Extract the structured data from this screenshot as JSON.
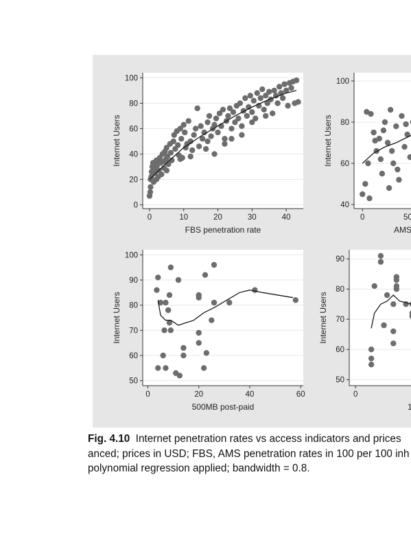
{
  "caption": {
    "label": "Fig. 4.10",
    "line1": "Internet penetration rates vs access indicators and prices",
    "line2": "anced; prices in USD; FBS, AMS penetration rates in 100 per 100 inh",
    "line3": "polynomial regression applied; bandwidth = 0.8."
  },
  "colors": {
    "figure_background": "#e6e6e6",
    "plot_background": "#ffffff",
    "gridline": "#e8e8e8",
    "marker": "#6d6d6d",
    "fit_line": "#1a1a1a"
  },
  "chart_data": [
    {
      "type": "scatter",
      "title": "",
      "xlabel": "FBS penetration rate",
      "ylabel": "Internet Users",
      "xlim": [
        -2,
        45
      ],
      "ylim": [
        -3,
        104
      ],
      "xticks": [
        0,
        10,
        20,
        30,
        40
      ],
      "yticks": [
        0,
        20,
        40,
        60,
        80,
        100
      ],
      "grid": true,
      "points": [
        [
          0,
          7
        ],
        [
          0.2,
          10
        ],
        [
          0.3,
          14
        ],
        [
          0.3,
          20
        ],
        [
          0.5,
          22
        ],
        [
          0.6,
          26
        ],
        [
          0.8,
          30
        ],
        [
          1,
          33
        ],
        [
          1.2,
          18
        ],
        [
          1.5,
          25
        ],
        [
          1.8,
          29
        ],
        [
          2,
          35
        ],
        [
          2.2,
          31
        ],
        [
          2.5,
          22
        ],
        [
          2.7,
          27
        ],
        [
          3,
          37
        ],
        [
          3.2,
          33
        ],
        [
          3.5,
          24
        ],
        [
          3.8,
          40
        ],
        [
          4,
          34
        ],
        [
          4.2,
          29
        ],
        [
          4.5,
          42
        ],
        [
          4.8,
          36
        ],
        [
          5,
          45
        ],
        [
          5.2,
          38
        ],
        [
          5.5,
          32
        ],
        [
          6,
          48
        ],
        [
          6.2,
          41
        ],
        [
          6.5,
          35
        ],
        [
          7,
          50
        ],
        [
          7.2,
          55
        ],
        [
          7.5,
          44
        ],
        [
          8,
          58
        ],
        [
          8.3,
          47
        ],
        [
          8.6,
          39
        ],
        [
          9,
          60
        ],
        [
          9.3,
          52
        ],
        [
          9.6,
          37
        ],
        [
          10,
          63
        ],
        [
          10.3,
          57
        ],
        [
          10.6,
          45
        ],
        [
          11,
          48
        ],
        [
          11.4,
          66
        ],
        [
          12,
          50
        ],
        [
          12.5,
          43
        ],
        [
          13,
          55
        ],
        [
          13.5,
          60
        ],
        [
          14,
          76
        ],
        [
          14.5,
          46
        ],
        [
          15,
          62
        ],
        [
          15.5,
          52
        ],
        [
          16,
          57
        ],
        [
          16.5,
          44
        ],
        [
          17,
          65
        ],
        [
          17.5,
          70
        ],
        [
          18,
          54
        ],
        [
          18.5,
          60
        ],
        [
          19,
          63
        ],
        [
          19.5,
          68
        ],
        [
          20,
          57
        ],
        [
          20.5,
          72
        ],
        [
          21,
          62
        ],
        [
          21.5,
          75
        ],
        [
          22,
          52
        ],
        [
          22.5,
          66
        ],
        [
          23,
          70
        ],
        [
          23.5,
          76
        ],
        [
          24,
          60
        ],
        [
          24.5,
          73
        ],
        [
          25,
          65
        ],
        [
          25.5,
          78
        ],
        [
          26,
          68
        ],
        [
          26.5,
          80
        ],
        [
          27,
          62
        ],
        [
          27.5,
          74
        ],
        [
          28,
          84
        ],
        [
          28.5,
          70
        ],
        [
          29,
          77
        ],
        [
          29.5,
          86
        ],
        [
          30,
          73
        ],
        [
          30.5,
          82
        ],
        [
          31,
          68
        ],
        [
          31.5,
          88
        ],
        [
          32,
          78
        ],
        [
          32.5,
          84
        ],
        [
          33,
          91
        ],
        [
          33.5,
          75
        ],
        [
          34,
          86
        ],
        [
          34.5,
          80
        ],
        [
          35,
          89
        ],
        [
          35.5,
          83
        ],
        [
          36,
          72
        ],
        [
          36.5,
          90
        ],
        [
          37,
          86
        ],
        [
          37.5,
          80
        ],
        [
          38,
          93
        ],
        [
          38.5,
          88
        ],
        [
          39,
          84
        ],
        [
          39.5,
          95
        ],
        [
          40,
          90
        ],
        [
          40.5,
          78
        ],
        [
          41,
          96
        ],
        [
          41.5,
          92
        ],
        [
          42,
          97
        ],
        [
          42.5,
          80
        ],
        [
          43,
          98
        ],
        [
          43.5,
          81
        ],
        [
          19,
          40
        ],
        [
          12,
          38
        ],
        [
          2,
          20
        ],
        [
          5,
          27
        ],
        [
          9,
          36
        ],
        [
          22,
          48
        ],
        [
          27,
          55
        ],
        [
          30,
          65
        ],
        [
          34,
          70
        ],
        [
          17,
          50
        ],
        [
          24,
          52
        ]
      ],
      "fit": [
        [
          0,
          20
        ],
        [
          5,
          33
        ],
        [
          10,
          45
        ],
        [
          15,
          54
        ],
        [
          20,
          62
        ],
        [
          25,
          70
        ],
        [
          30,
          77
        ],
        [
          35,
          83
        ],
        [
          40,
          88
        ],
        [
          43,
          90
        ]
      ]
    },
    {
      "type": "scatter",
      "title": "",
      "xlabel": "AMS",
      "ylabel": "Internet Users",
      "xlim": [
        -3,
        20
      ],
      "ylim": [
        38,
        104
      ],
      "xticks": [
        0
      ],
      "xtick_labels_partial": [
        "50"
      ],
      "yticks": [
        40,
        60,
        80,
        100
      ],
      "grid": true,
      "points": [
        [
          0,
          45
        ],
        [
          1,
          50
        ],
        [
          2,
          60
        ],
        [
          1.5,
          85
        ],
        [
          3,
          84
        ],
        [
          4,
          75
        ],
        [
          5,
          66
        ],
        [
          6,
          72
        ],
        [
          7,
          55
        ],
        [
          8,
          80
        ],
        [
          9,
          70
        ],
        [
          10,
          86
        ],
        [
          11,
          60
        ],
        [
          12,
          78
        ],
        [
          13,
          52
        ],
        [
          14,
          83
        ],
        [
          15,
          68
        ],
        [
          16,
          74
        ],
        [
          17,
          63
        ],
        [
          18,
          80
        ],
        [
          2.5,
          43
        ],
        [
          6.5,
          62
        ],
        [
          9.5,
          48
        ],
        [
          12.5,
          57
        ],
        [
          15.5,
          79
        ],
        [
          4.5,
          71
        ],
        [
          7.5,
          76
        ],
        [
          10.5,
          66
        ]
      ],
      "fit": [
        [
          0,
          60
        ],
        [
          4,
          65
        ],
        [
          8,
          68
        ],
        [
          12,
          70
        ],
        [
          18,
          74
        ]
      ]
    },
    {
      "type": "scatter",
      "title": "",
      "xlabel": "500MB post-paid",
      "ylabel": "Internet Users",
      "xlim": [
        -2,
        61
      ],
      "ylim": [
        48,
        102
      ],
      "xticks": [
        0,
        20,
        40,
        60
      ],
      "yticks": [
        50,
        60,
        70,
        80,
        90,
        100
      ],
      "grid": true,
      "points": [
        [
          4,
          91
        ],
        [
          3.5,
          86
        ],
        [
          4,
          55
        ],
        [
          5,
          81
        ],
        [
          6,
          60
        ],
        [
          6.5,
          70
        ],
        [
          7,
          81
        ],
        [
          7,
          55
        ],
        [
          8,
          78
        ],
        [
          8.5,
          84
        ],
        [
          9,
          95
        ],
        [
          8.5,
          73
        ],
        [
          9,
          70
        ],
        [
          11,
          53
        ],
        [
          12,
          90
        ],
        [
          12.5,
          52
        ],
        [
          14,
          63
        ],
        [
          14,
          60
        ],
        [
          20,
          84
        ],
        [
          20,
          83
        ],
        [
          20,
          69
        ],
        [
          20,
          65
        ],
        [
          22,
          55
        ],
        [
          22.5,
          92
        ],
        [
          23,
          61
        ],
        [
          25,
          74
        ],
        [
          26,
          81
        ],
        [
          26,
          96
        ],
        [
          32,
          81
        ],
        [
          42,
          86
        ],
        [
          58,
          82
        ]
      ],
      "fit": [
        [
          4,
          82
        ],
        [
          5,
          76
        ],
        [
          7,
          74
        ],
        [
          9,
          74
        ],
        [
          12,
          72
        ],
        [
          15,
          73
        ],
        [
          18,
          74
        ],
        [
          22,
          77
        ],
        [
          26,
          79
        ],
        [
          31,
          82
        ],
        [
          36,
          85
        ],
        [
          40,
          86
        ],
        [
          45,
          85
        ],
        [
          57,
          83
        ]
      ]
    },
    {
      "type": "scatter",
      "title": "",
      "xlabel": "1",
      "ylabel": "Internet Users",
      "xlim": [
        -2,
        20
      ],
      "ylim": [
        48,
        93
      ],
      "xticks": [
        0,
        20
      ],
      "yticks": [
        50,
        60,
        70,
        80,
        90
      ],
      "grid": true,
      "points": [
        [
          5,
          60
        ],
        [
          5,
          57
        ],
        [
          5,
          55
        ],
        [
          6,
          81
        ],
        [
          8,
          91
        ],
        [
          8,
          89
        ],
        [
          9,
          68
        ],
        [
          10,
          78
        ],
        [
          12,
          75
        ],
        [
          12,
          62
        ],
        [
          12,
          66
        ],
        [
          13,
          83
        ],
        [
          13,
          84
        ],
        [
          13,
          80
        ],
        [
          13,
          81
        ],
        [
          16,
          75
        ],
        [
          18,
          75
        ],
        [
          18,
          71
        ],
        [
          19,
          84
        ],
        [
          19,
          85
        ],
        [
          19,
          52
        ],
        [
          19,
          54
        ],
        [
          18,
          72
        ]
      ],
      "fit": [
        [
          5,
          67
        ],
        [
          6,
          72
        ],
        [
          8,
          75
        ],
        [
          10,
          76
        ],
        [
          12,
          78
        ],
        [
          14,
          76
        ],
        [
          18,
          75
        ],
        [
          20,
          74
        ]
      ]
    }
  ]
}
